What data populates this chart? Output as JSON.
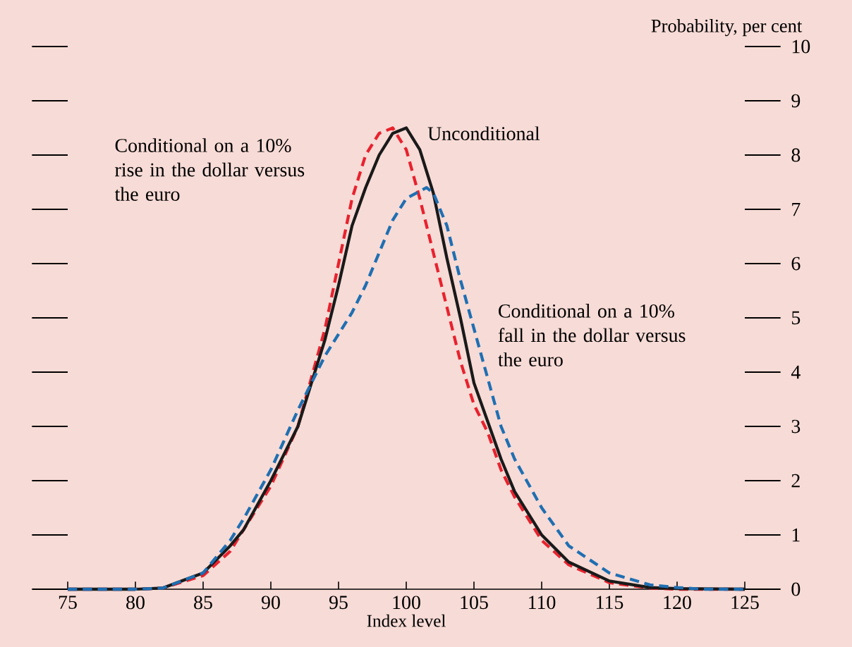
{
  "chart_data": {
    "type": "line",
    "xlabel": "Index level",
    "ylabel": "Probability, per cent",
    "xlim": [
      75,
      125
    ],
    "xticks": [
      75,
      80,
      85,
      90,
      95,
      100,
      105,
      110,
      115,
      120,
      125
    ],
    "ylim": [
      0,
      10
    ],
    "yticks": [
      0,
      1,
      2,
      3,
      4,
      5,
      6,
      7,
      8,
      9,
      10
    ],
    "grid": false,
    "legend": false,
    "series": [
      {
        "name": "Conditional on a 10% rise in the dollar versus the euro",
        "color": "#e8222e",
        "line_style": "dashed",
        "x": [
          75,
          80,
          82,
          85,
          87,
          90,
          92,
          94,
          95,
          96,
          97,
          98,
          99,
          100,
          101,
          102,
          103,
          104,
          105,
          106,
          107,
          108,
          110,
          112,
          115,
          118,
          120,
          125
        ],
        "values": [
          0,
          0,
          0.02,
          0.25,
          0.7,
          1.9,
          3.0,
          4.8,
          6.0,
          7.2,
          8.0,
          8.4,
          8.5,
          8.1,
          7.2,
          6.2,
          5.2,
          4.2,
          3.4,
          2.9,
          2.2,
          1.7,
          0.9,
          0.45,
          0.12,
          0.02,
          0,
          0
        ]
      },
      {
        "name": "Unconditional",
        "color": "#1a1a1a",
        "line_style": "solid",
        "x": [
          75,
          80,
          82,
          85,
          87,
          88,
          90,
          92,
          93,
          94,
          95,
          96,
          97,
          98,
          99,
          100,
          101,
          102,
          103,
          104,
          105,
          106,
          107,
          108,
          110,
          112,
          115,
          118,
          120,
          125
        ],
        "values": [
          0,
          0,
          0.02,
          0.3,
          0.8,
          1.1,
          2.0,
          3.0,
          3.8,
          4.6,
          5.6,
          6.7,
          7.4,
          8.0,
          8.4,
          8.5,
          8.1,
          7.3,
          6.1,
          5.0,
          3.8,
          3.1,
          2.4,
          1.8,
          1.0,
          0.5,
          0.15,
          0.03,
          0.01,
          0
        ]
      },
      {
        "name": "Conditional on a 10% fall in the dollar versus the euro",
        "color": "#1f6fb2",
        "line_style": "dashed",
        "x": [
          75,
          80,
          82,
          85,
          87,
          88,
          90,
          92,
          94,
          95,
          96,
          97,
          98,
          99,
          100,
          101.5,
          102,
          103,
          104,
          105,
          106,
          107,
          108,
          110,
          112,
          115,
          118,
          120,
          122,
          125
        ],
        "values": [
          0,
          0,
          0.02,
          0.3,
          0.9,
          1.3,
          2.2,
          3.3,
          4.3,
          4.7,
          5.1,
          5.6,
          6.2,
          6.8,
          7.2,
          7.4,
          7.3,
          6.7,
          5.7,
          4.8,
          3.9,
          3.0,
          2.4,
          1.5,
          0.8,
          0.3,
          0.08,
          0.03,
          0,
          0
        ]
      }
    ]
  }
}
